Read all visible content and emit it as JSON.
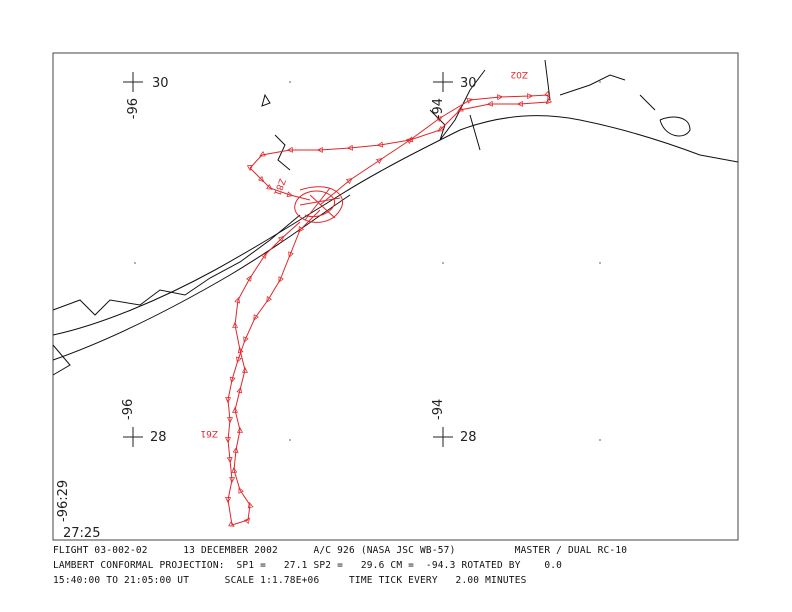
{
  "map": {
    "grid_labels": {
      "lat_nw": "30",
      "lon_nw": "-96",
      "lat_ne": "30",
      "lon_ne": "-94",
      "lat_sw": "28",
      "lon_sw": "-96",
      "lat_se": "28",
      "lon_se": "-94"
    },
    "corner_labels": {
      "lon": "-96:29",
      "lat": "27:25"
    },
    "track_labels": [
      "Z02",
      "Z81",
      "Z61"
    ],
    "footer": [
      "FLIGHT 03-002-02      13 DECEMBER 2002      A/C 926 (NASA JSC WB-57)          MASTER / DUAL RC-10",
      "LAMBERT CONFORMAL PROJECTION:  SP1 =   27.1 SP2 =   29.6 CM =  -94.3 ROTATED BY    0.0",
      "15:40:00 TO 21:05:00 UT      SCALE 1:1.78E+06     TIME TICK EVERY   2.00 MINUTES"
    ]
  }
}
